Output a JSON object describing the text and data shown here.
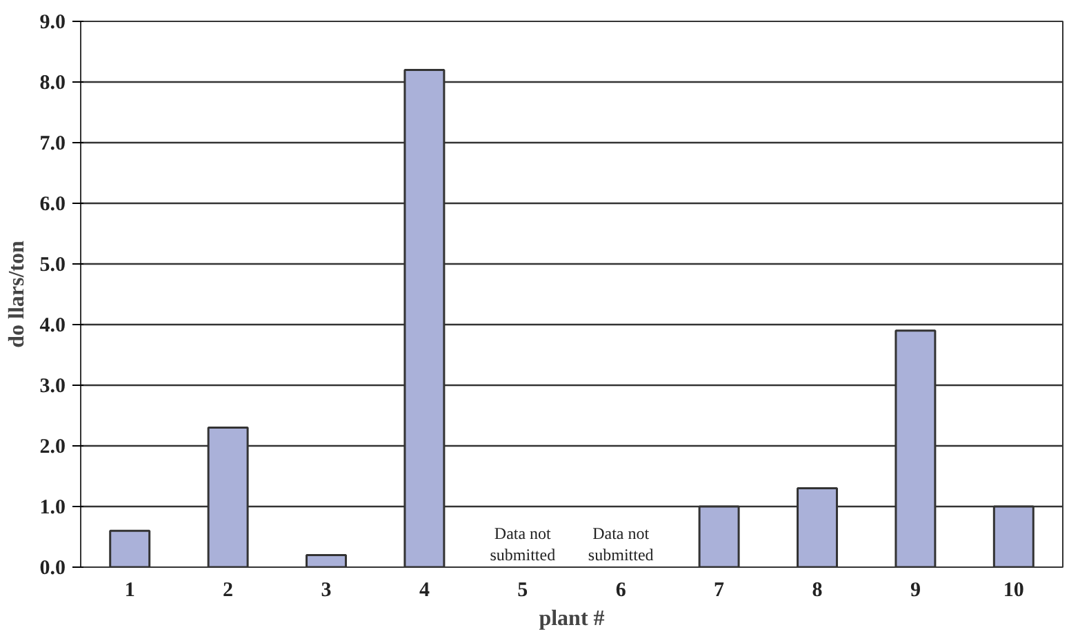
{
  "chart_data": {
    "type": "bar",
    "xlabel": "plant #",
    "ylabel": "do llars/ton",
    "categories": [
      "1",
      "2",
      "3",
      "4",
      "5",
      "6",
      "7",
      "8",
      "9",
      "10"
    ],
    "values": [
      0.6,
      2.3,
      0.2,
      8.2,
      null,
      null,
      1.0,
      1.3,
      3.9,
      1.0
    ],
    "color": "#aab1d9",
    "ylim": [
      0,
      9
    ],
    "yticks": [
      {
        "value": 0,
        "label": "0.0"
      },
      {
        "value": 1,
        "label": "1.0"
      },
      {
        "value": 2,
        "label": "2.0"
      },
      {
        "value": 3,
        "label": "3.0"
      },
      {
        "value": 4,
        "label": "4.0"
      },
      {
        "value": 5,
        "label": "5.0"
      },
      {
        "value": 6,
        "label": "6.0"
      },
      {
        "value": 7,
        "label": "7.0"
      },
      {
        "value": 8,
        "label": "8.0"
      },
      {
        "value": 9,
        "label": "9.0"
      }
    ],
    "grid": "y",
    "annotations": [
      "Data not\nsubmitted",
      "Data not\nsubmitted"
    ]
  }
}
